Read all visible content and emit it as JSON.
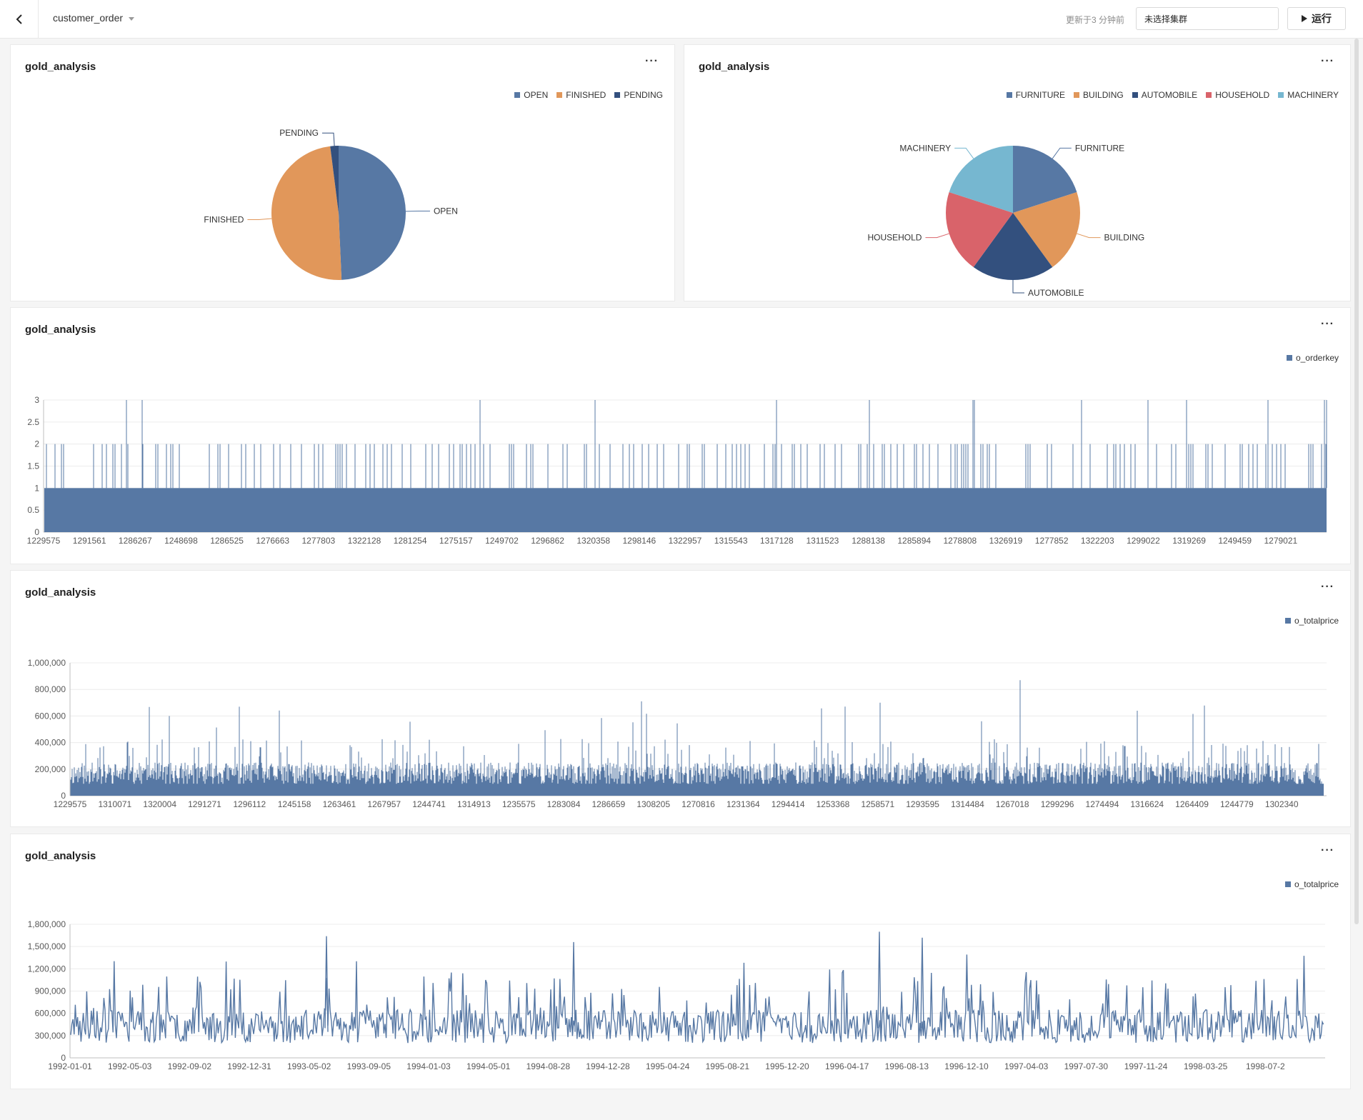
{
  "topbar": {
    "dataset_name": "customer_order",
    "updated_text": "更新于3 分钟前",
    "cluster_placeholder": "未选择集群",
    "run_label": "运行"
  },
  "colors": {
    "blue": "#5778a4",
    "orange": "#e1975a",
    "navy": "#33507e",
    "red": "#d9636a",
    "lightblue": "#76b7d0"
  },
  "panels": [
    {
      "title": "gold_analysis",
      "more": "···"
    },
    {
      "title": "gold_analysis",
      "more": "···"
    },
    {
      "title": "gold_analysis",
      "more": "···"
    },
    {
      "title": "gold_analysis",
      "more": "···"
    },
    {
      "title": "gold_analysis",
      "more": "···"
    }
  ],
  "chart_data": [
    {
      "type": "pie",
      "categories": [
        "OPEN",
        "FINISHED",
        "PENDING"
      ],
      "values": [
        49.3,
        48.7,
        2.0
      ],
      "colors": [
        "#5778a4",
        "#e1975a",
        "#33507e"
      ],
      "legend_position": "top-right"
    },
    {
      "type": "pie",
      "categories": [
        "FURNITURE",
        "BUILDING",
        "AUTOMOBILE",
        "HOUSEHOLD",
        "MACHINERY"
      ],
      "values": [
        20.0,
        20.0,
        20.0,
        20.0,
        20.0
      ],
      "colors": [
        "#5778a4",
        "#e1975a",
        "#33507e",
        "#d9636a",
        "#76b7d0"
      ],
      "legend_position": "top-right"
    },
    {
      "type": "bar",
      "series": [
        {
          "name": "o_orderkey"
        }
      ],
      "baseline_value": 1,
      "ylim": [
        0,
        3
      ],
      "yticks": [
        "0",
        "0.5",
        "1",
        "1.5",
        "2",
        "2.5",
        "3"
      ],
      "xticks": [
        "1229575",
        "1291561",
        "1286267",
        "1248698",
        "1286525",
        "1276663",
        "1277803",
        "1322128",
        "1281254",
        "1275157",
        "1249702",
        "1296862",
        "1320358",
        "1298146",
        "1322957",
        "1315543",
        "1317128",
        "1311523",
        "1288138",
        "1285894",
        "1278808",
        "1326919",
        "1277852",
        "1322203",
        "1299022",
        "1319269",
        "1249459",
        "1279021"
      ],
      "peaks_value_3_count": 14,
      "grid": true,
      "legend_position": "top-right"
    },
    {
      "type": "bar",
      "series": [
        {
          "name": "o_totalprice"
        }
      ],
      "ylim": [
        0,
        1000000
      ],
      "yticks": [
        "0",
        "200,000",
        "400,000",
        "600,000",
        "800,000",
        "1,000,000"
      ],
      "xticks": [
        "1229575",
        "1310071",
        "1320004",
        "1291271",
        "1296112",
        "1245158",
        "1263461",
        "1267957",
        "1244741",
        "1314913",
        "1235575",
        "1283084",
        "1286659",
        "1308205",
        "1270816",
        "1231364",
        "1294414",
        "1253368",
        "1258571",
        "1293595",
        "1314484",
        "1267018",
        "1299296",
        "1274494",
        "1316624",
        "1264409",
        "1244779",
        "1302340"
      ],
      "typical_range": [
        100000,
        300000
      ],
      "max_value": 870000,
      "grid": true,
      "legend_position": "top-right"
    },
    {
      "type": "line",
      "series": [
        {
          "name": "o_totalprice"
        }
      ],
      "ylim": [
        0,
        1800000
      ],
      "yticks": [
        "0",
        "300,000",
        "600,000",
        "900,000",
        "1,200,000",
        "1,500,000",
        "1,800,000"
      ],
      "xticks": [
        "1992-01-01",
        "1992-05-03",
        "1992-09-02",
        "1992-12-31",
        "1993-05-02",
        "1993-09-05",
        "1994-01-03",
        "1994-05-01",
        "1994-08-28",
        "1994-12-28",
        "1995-04-24",
        "1995-08-21",
        "1995-12-20",
        "1996-04-17",
        "1996-08-13",
        "1996-12-10",
        "1997-04-03",
        "1997-07-30",
        "1997-11-24",
        "1998-03-25",
        "1998-07-2"
      ],
      "typical_range": [
        200000,
        900000
      ],
      "max_value": 1700000,
      "grid": true,
      "legend_position": "top-right"
    }
  ]
}
